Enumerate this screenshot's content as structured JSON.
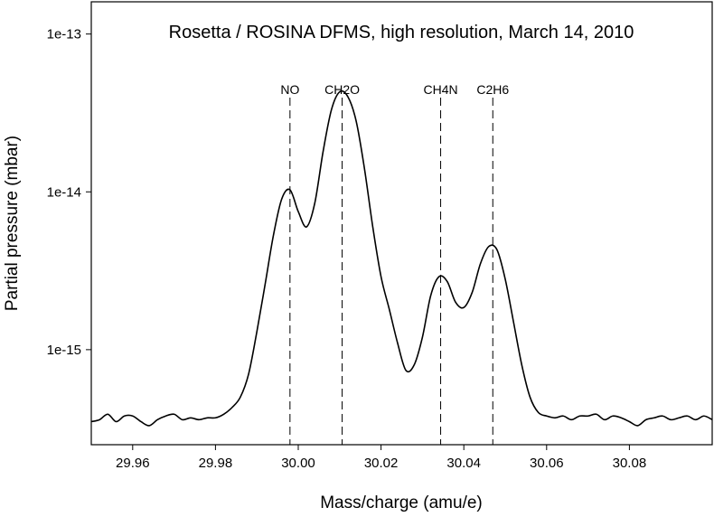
{
  "chart_data": {
    "type": "line",
    "title": "Rosetta / ROSINA DFMS, high resolution, March 14, 2010",
    "xlabel": "Mass/charge (amu/e)",
    "ylabel": "Partial pressure (mbar)",
    "xlim": [
      29.95,
      30.1
    ],
    "ylim": [
      2.5e-16,
      1.6e-13
    ],
    "yscale": "log",
    "grid": false,
    "x_ticks": [
      29.96,
      29.98,
      30.0,
      30.02,
      30.04,
      30.06,
      30.08
    ],
    "x_tick_labels": [
      "29.96",
      "29.98",
      "30.00",
      "30.02",
      "30.04",
      "30.06",
      "30.08"
    ],
    "y_ticks": [
      1e-15,
      1e-14,
      1e-13
    ],
    "y_tick_labels": [
      "1e-15",
      "1e-14",
      "1e-13"
    ],
    "markers": [
      {
        "label": "NO",
        "x": 29.998
      },
      {
        "label": "CH2O",
        "x": 30.0106
      },
      {
        "label": "CH4N",
        "x": 30.0344
      },
      {
        "label": "C2H6",
        "x": 30.047
      }
    ],
    "series": [
      {
        "color": "#000000",
        "x": [
          29.95,
          29.952,
          29.954,
          29.956,
          29.958,
          29.96,
          29.962,
          29.964,
          29.966,
          29.968,
          29.97,
          29.972,
          29.974,
          29.976,
          29.978,
          29.98,
          29.982,
          29.984,
          29.986,
          29.988,
          29.99,
          29.992,
          29.994,
          29.996,
          29.998,
          30.0,
          30.002,
          30.004,
          30.006,
          30.008,
          30.01,
          30.012,
          30.014,
          30.016,
          30.018,
          30.02,
          30.022,
          30.024,
          30.026,
          30.028,
          30.03,
          30.032,
          30.034,
          30.036,
          30.038,
          30.04,
          30.042,
          30.044,
          30.046,
          30.048,
          30.05,
          30.052,
          30.054,
          30.056,
          30.058,
          30.06,
          30.062,
          30.064,
          30.066,
          30.068,
          30.07,
          30.072,
          30.074,
          30.076,
          30.078,
          30.08,
          30.082,
          30.084,
          30.086,
          30.088,
          30.09,
          30.092,
          30.094,
          30.096,
          30.098,
          30.1
        ],
        "y": [
          3.5e-16,
          3.6e-16,
          3.9e-16,
          3.5e-16,
          3.8e-16,
          3.8e-16,
          3.5e-16,
          3.3e-16,
          3.6e-16,
          3.8e-16,
          3.9e-16,
          3.6e-16,
          3.7e-16,
          3.6e-16,
          3.7e-16,
          3.7e-16,
          3.9e-16,
          4.3e-16,
          5e-16,
          7e-16,
          1.3e-15,
          2.6e-15,
          5.3e-15,
          9e-15,
          1.03e-14,
          7.5e-15,
          6e-15,
          8.5e-15,
          1.8e-14,
          3.3e-14,
          4.3e-14,
          4e-14,
          2.8e-14,
          1.4e-14,
          6e-15,
          2.9e-15,
          1.8e-15,
          1.1e-15,
          7.4e-16,
          8e-16,
          1.2e-15,
          2.2e-15,
          2.9e-15,
          2.7e-15,
          2e-15,
          1.85e-15,
          2.3e-15,
          3.5e-15,
          4.5e-15,
          4.3e-15,
          2.8e-15,
          1.5e-15,
          8e-16,
          5e-16,
          4e-16,
          3.8e-16,
          3.7e-16,
          3.8e-16,
          3.6e-16,
          3.8e-16,
          3.8e-16,
          3.9e-16,
          3.6e-16,
          3.8e-16,
          3.7e-16,
          3.5e-16,
          3.3e-16,
          3.6e-16,
          3.7e-16,
          3.8e-16,
          3.6e-16,
          3.7e-16,
          3.8e-16,
          3.6e-16,
          3.8e-16,
          3.6e-16
        ]
      }
    ]
  }
}
